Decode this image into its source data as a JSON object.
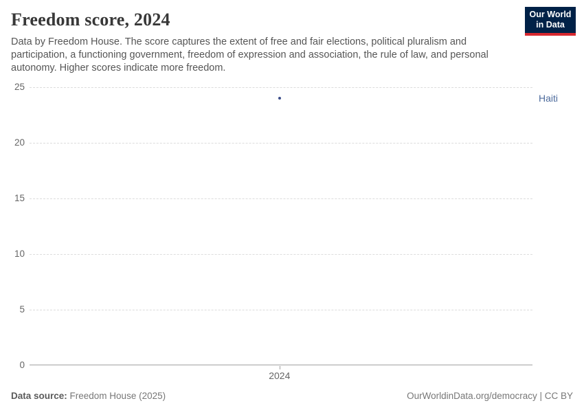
{
  "header": {
    "title": "Freedom score, 2024",
    "subtitle": "Data by Freedom House. The score captures the extent of free and fair elections, political pluralism and participation, a functioning government, freedom of expression and association, the rule of law, and personal autonomy. Higher scores indicate more freedom."
  },
  "logo": {
    "line1": "Our World",
    "line2": "in Data",
    "bg_color": "#002147",
    "accent_color": "#D7282F"
  },
  "chart_data": {
    "type": "scatter",
    "title": "Freedom score, 2024",
    "x": [
      2024
    ],
    "categories": [
      "2024"
    ],
    "series": [
      {
        "name": "Haiti",
        "values": [
          24
        ],
        "color": "#3D4E8A",
        "label_color": "#4C6A9C"
      }
    ],
    "xlabel": "",
    "ylabel": "",
    "ylim": [
      0,
      25
    ],
    "yticks": [
      0,
      5,
      10,
      15,
      20,
      25
    ],
    "xticks": [
      "2024"
    ],
    "grid": "horizontal-dashed",
    "gridline_color": "#dcdcdc",
    "axis_color": "#a1a1a1",
    "tick_label_color": "#666666",
    "legend_position": "right-of-point"
  },
  "footer": {
    "source_label": "Data source:",
    "source_value": " Freedom House (2025)",
    "credit": "OurWorldinData.org/democracy | CC BY"
  }
}
